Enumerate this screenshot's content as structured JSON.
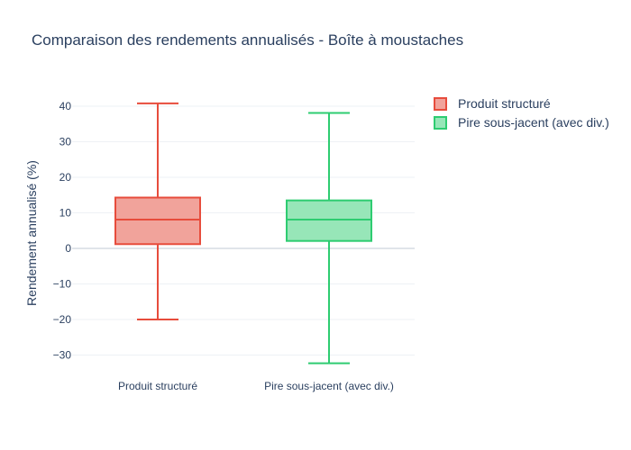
{
  "chart_data": {
    "type": "box",
    "title": "Comparaison des rendements annualisés - Boîte à moustaches",
    "xlabel": "",
    "ylabel": "Rendement annualisé (%)",
    "ylim": [
      -34,
      45
    ],
    "yticks": [
      40,
      30,
      20,
      10,
      0,
      -10,
      -20,
      -30
    ],
    "ytick_labels": [
      "40",
      "30",
      "20",
      "10",
      "0",
      "−10",
      "−20",
      "−30"
    ],
    "grid": true,
    "legend_position": "top-right",
    "categories": [
      "Produit structuré",
      "Pire sous-jacent (avec div.)"
    ],
    "series": [
      {
        "name": "Produit structuré",
        "color": "#e74c3c",
        "fill": "#f1a39b",
        "min": -20,
        "q1": 1.2,
        "median": 8.1,
        "q3": 14.3,
        "max": 40.8
      },
      {
        "name": "Pire sous-jacent (avec div.)",
        "color": "#2ecc71",
        "fill": "#97e6b8",
        "min": -32.3,
        "q1": 2.1,
        "median": 8.1,
        "q3": 13.5,
        "max": 38.1
      }
    ]
  }
}
